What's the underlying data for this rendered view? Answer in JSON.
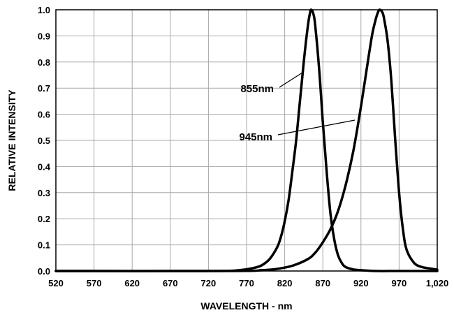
{
  "chart_data": {
    "type": "line",
    "xlabel": "WAVELENGTH - nm",
    "ylabel": "RELATIVE INTENSITY",
    "xlim": [
      520,
      1020
    ],
    "ylim": [
      0,
      1.0
    ],
    "x_ticks": [
      "520",
      "570",
      "620",
      "670",
      "720",
      "770",
      "820",
      "870",
      "920",
      "970",
      "1,020"
    ],
    "y_ticks": [
      "0.0",
      "0.1",
      "0.2",
      "0.3",
      "0.4",
      "0.5",
      "0.6",
      "0.7",
      "0.8",
      "0.9",
      "1.0"
    ],
    "grid": true,
    "series": [
      {
        "name": "855nm",
        "x": [
          520,
          720,
          760,
          780,
          790,
          800,
          810,
          815,
          820,
          825,
          830,
          835,
          840,
          845,
          850,
          853,
          855,
          858,
          860,
          865,
          870,
          875,
          880,
          885,
          890,
          895,
          900,
          910,
          920,
          940,
          970,
          1020
        ],
        "y": [
          0.0,
          0.0,
          0.003,
          0.012,
          0.022,
          0.045,
          0.09,
          0.13,
          0.19,
          0.27,
          0.38,
          0.5,
          0.65,
          0.8,
          0.93,
          0.985,
          1.0,
          0.98,
          0.94,
          0.78,
          0.57,
          0.38,
          0.22,
          0.12,
          0.06,
          0.03,
          0.015,
          0.006,
          0.003,
          0.0,
          0.0,
          0.0
        ]
      },
      {
        "name": "945nm",
        "x": [
          520,
          750,
          790,
          810,
          830,
          850,
          860,
          870,
          880,
          890,
          900,
          910,
          920,
          930,
          935,
          940,
          943,
          945,
          948,
          950,
          955,
          960,
          965,
          970,
          975,
          980,
          990,
          1000,
          1010,
          1020
        ],
        "y": [
          0.0,
          0.0,
          0.003,
          0.008,
          0.02,
          0.045,
          0.07,
          0.11,
          0.16,
          0.23,
          0.33,
          0.46,
          0.63,
          0.82,
          0.91,
          0.97,
          0.995,
          1.0,
          0.99,
          0.97,
          0.88,
          0.72,
          0.5,
          0.3,
          0.16,
          0.08,
          0.03,
          0.015,
          0.01,
          0.005
        ]
      }
    ],
    "annotations": [
      {
        "text": "855nm",
        "series": "855nm"
      },
      {
        "text": "945nm",
        "series": "945nm"
      }
    ]
  }
}
